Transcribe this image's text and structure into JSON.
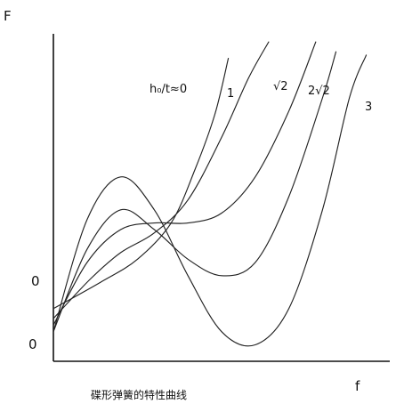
{
  "chart_data": {
    "type": "line",
    "title": "",
    "caption": "碟形弹簧的特性曲线",
    "xlabel": "f",
    "ylabel": "F",
    "grid": false,
    "legend": "inline labels at curve ends",
    "y_tick_labels": [
      "0",
      "0"
    ],
    "series": [
      {
        "name": "h₀/t≈0",
        "points": [
          [
            0.0,
            1.6
          ],
          [
            0.14,
            2.4
          ],
          [
            0.25,
            3.1
          ],
          [
            0.35,
            4.2
          ],
          [
            0.42,
            5.8
          ],
          [
            0.48,
            7.5
          ],
          [
            0.52,
            9.2
          ]
        ]
      },
      {
        "name": "1",
        "points": [
          [
            0.0,
            1.3
          ],
          [
            0.11,
            2.5
          ],
          [
            0.2,
            3.3
          ],
          [
            0.3,
            3.9
          ],
          [
            0.4,
            4.9
          ],
          [
            0.5,
            6.8
          ],
          [
            0.58,
            8.6
          ],
          [
            0.64,
            9.7
          ]
        ]
      },
      {
        "name": "√2",
        "points": [
          [
            0.0,
            1.1
          ],
          [
            0.1,
            3.0
          ],
          [
            0.2,
            4.0
          ],
          [
            0.3,
            4.2
          ],
          [
            0.4,
            4.2
          ],
          [
            0.5,
            4.5
          ],
          [
            0.6,
            5.6
          ],
          [
            0.7,
            7.6
          ],
          [
            0.78,
            9.7
          ]
        ]
      },
      {
        "name": "2√2",
        "points": [
          [
            0.0,
            0.9
          ],
          [
            0.1,
            3.4
          ],
          [
            0.2,
            4.6
          ],
          [
            0.3,
            4.0
          ],
          [
            0.4,
            3.1
          ],
          [
            0.5,
            2.6
          ],
          [
            0.6,
            3.0
          ],
          [
            0.7,
            5.0
          ],
          [
            0.8,
            8.0
          ],
          [
            0.84,
            9.4
          ]
        ]
      },
      {
        "name": "3",
        "points": [
          [
            0.0,
            0.9
          ],
          [
            0.1,
            4.3
          ],
          [
            0.2,
            5.6
          ],
          [
            0.3,
            4.6
          ],
          [
            0.4,
            2.6
          ],
          [
            0.5,
            0.9
          ],
          [
            0.6,
            0.5
          ],
          [
            0.7,
            1.6
          ],
          [
            0.8,
            4.6
          ],
          [
            0.88,
            8.0
          ],
          [
            0.93,
            9.3
          ]
        ]
      }
    ]
  }
}
